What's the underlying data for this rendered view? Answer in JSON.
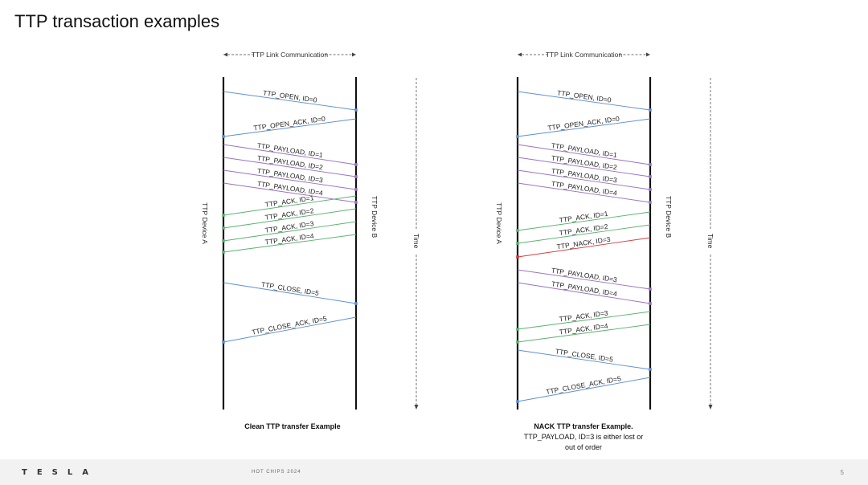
{
  "slide_title": "TTP transaction examples",
  "colors": {
    "blue": "#5b8fd6",
    "purple": "#9a72c0",
    "green": "#58b26e",
    "red": "#d23a3a",
    "axis": "#111111"
  },
  "diagrams": [
    {
      "link_label": "TTP Link Communication",
      "device_a": "TTP Device A",
      "device_b": "TTP Device B",
      "time_label": "Time",
      "caption": [
        "Clean TTP transfer Example"
      ],
      "messages": [
        {
          "label": "TTP_OPEN, ID=0",
          "dir": "AB",
          "color": "blue"
        },
        {
          "label": "TTP_OPEN_ACK, ID=0",
          "dir": "BA",
          "color": "blue"
        },
        {
          "label": "TTP_PAYLOAD, ID=1",
          "dir": "AB",
          "color": "purple"
        },
        {
          "label": "TTP_PAYLOAD, ID=2",
          "dir": "AB",
          "color": "purple"
        },
        {
          "label": "TTP_PAYLOAD, ID=3",
          "dir": "AB",
          "color": "purple"
        },
        {
          "label": "TTP_PAYLOAD, ID=4",
          "dir": "AB",
          "color": "purple"
        },
        {
          "label": "TTP_ACK, ID=1",
          "dir": "BA",
          "color": "green"
        },
        {
          "label": "TTP_ACK, ID=2",
          "dir": "BA",
          "color": "green"
        },
        {
          "label": "TTP_ACK, ID=3",
          "dir": "BA",
          "color": "green"
        },
        {
          "label": "TTP_ACK, ID=4",
          "dir": "BA",
          "color": "green"
        },
        {
          "label": "TTP_CLOSE, ID=5",
          "dir": "AB",
          "color": "blue"
        },
        {
          "label": "TTP_CLOSE_ACK, ID=5",
          "dir": "BA",
          "color": "blue"
        }
      ]
    },
    {
      "link_label": "TTP Link Communication",
      "device_a": "TTP Device A",
      "device_b": "TTP Device B",
      "time_label": "Time",
      "caption": [
        "NACK TTP transfer Example.",
        "TTP_PAYLOAD, ID=3 is either lost or",
        "out of order"
      ],
      "messages": [
        {
          "label": "TTP_OPEN, ID=0",
          "dir": "AB",
          "color": "blue"
        },
        {
          "label": "TTP_OPEN_ACK, ID=0",
          "dir": "BA",
          "color": "blue"
        },
        {
          "label": "TTP_PAYLOAD, ID=1",
          "dir": "AB",
          "color": "purple"
        },
        {
          "label": "TTP_PAYLOAD, ID=2",
          "dir": "AB",
          "color": "purple"
        },
        {
          "label": "TTP_PAYLOAD, ID=3",
          "dir": "AB",
          "color": "purple"
        },
        {
          "label": "TTP_PAYLOAD, ID=4",
          "dir": "AB",
          "color": "purple"
        },
        {
          "label": "TTP_ACK, ID=1",
          "dir": "BA",
          "color": "green"
        },
        {
          "label": "TTP_ACK, ID=2",
          "dir": "BA",
          "color": "green"
        },
        {
          "label": "TTP_NACK, ID=3",
          "dir": "BA",
          "color": "red"
        },
        {
          "label": "TTP_PAYLOAD, ID=3",
          "dir": "AB",
          "color": "purple"
        },
        {
          "label": "TTP_PAYLOAD, ID=4",
          "dir": "AB",
          "color": "purple"
        },
        {
          "label": "TTP_ACK, ID=3",
          "dir": "BA",
          "color": "green"
        },
        {
          "label": "TTP_ACK, ID=4",
          "dir": "BA",
          "color": "green"
        },
        {
          "label": "TTP_CLOSE, ID=5",
          "dir": "AB",
          "color": "blue"
        },
        {
          "label": "TTP_CLOSE_ACK, ID=5",
          "dir": "BA",
          "color": "blue"
        }
      ]
    }
  ],
  "footer": {
    "logo": "TESLA",
    "event": "HOT CHIPS 2024",
    "page_number": "5"
  }
}
